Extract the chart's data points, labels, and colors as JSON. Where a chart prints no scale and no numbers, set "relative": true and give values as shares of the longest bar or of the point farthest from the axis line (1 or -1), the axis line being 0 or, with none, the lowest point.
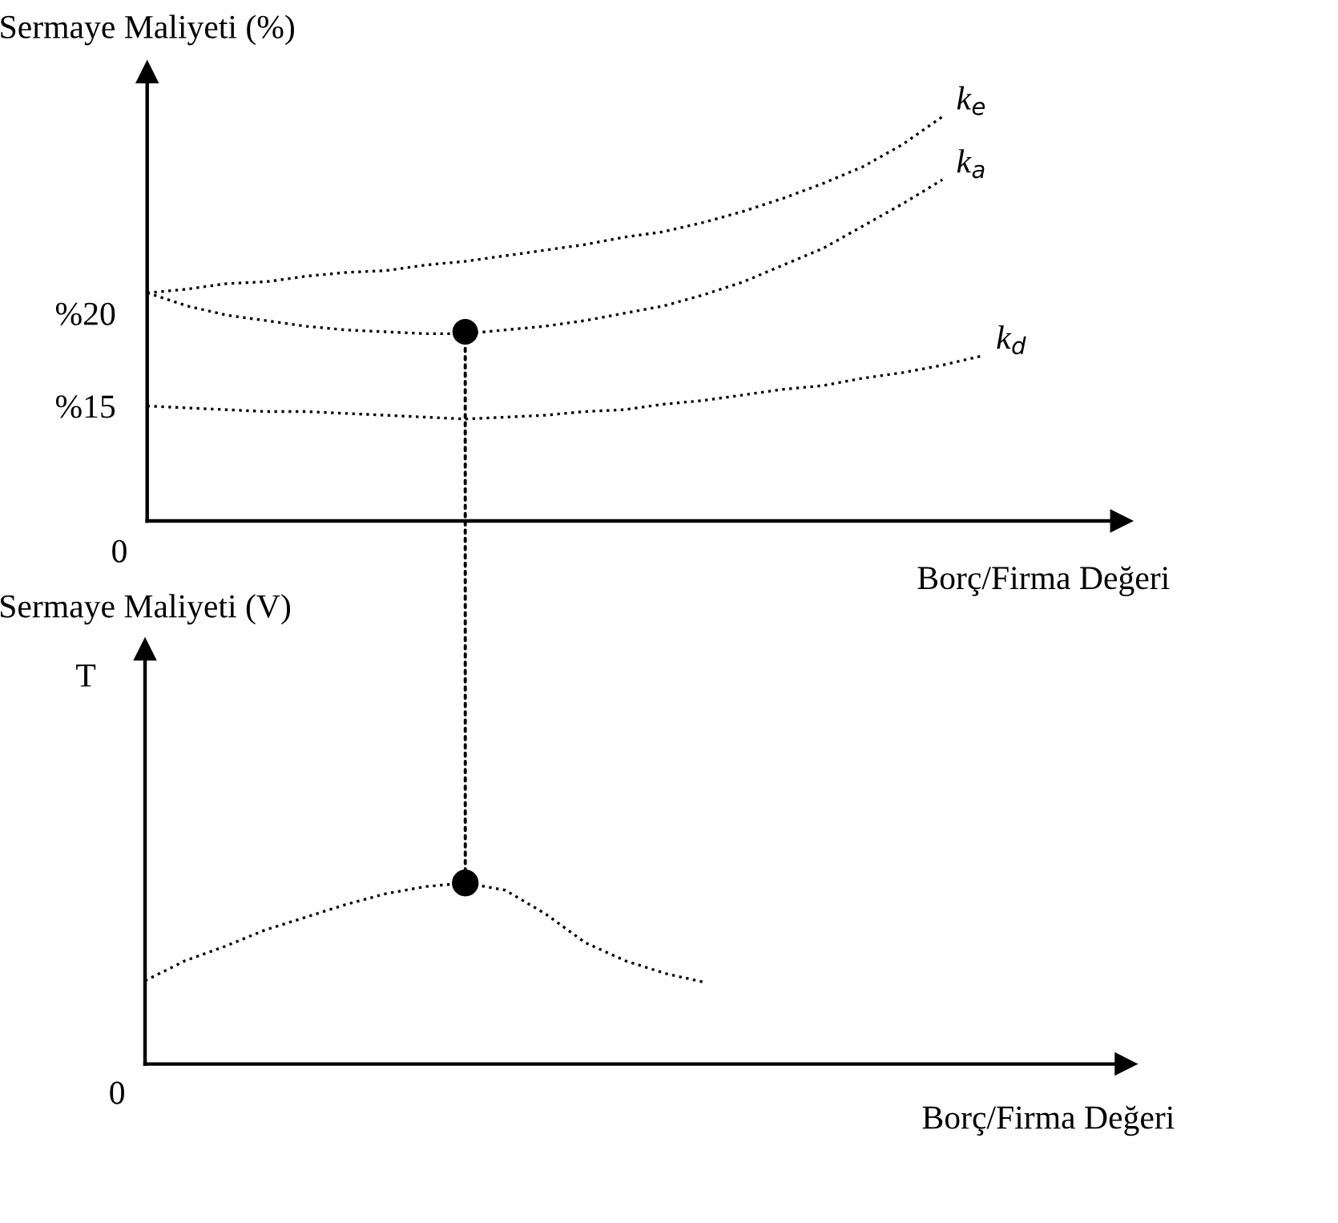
{
  "chart_data": [
    {
      "type": "line",
      "ylabel": "Sermaye Maliyeti (%)",
      "xlabel": "Borç/Firma Değeri",
      "categories": [
        null,
        null,
        null,
        null,
        null,
        null,
        null,
        null,
        null,
        null,
        null,
        null,
        null,
        null,
        null,
        null,
        null,
        null,
        null,
        null,
        null,
        null
      ],
      "ylim": [
        8.8,
        33
      ],
      "yticks": [
        {
          "value": 15,
          "label": "%15"
        },
        {
          "value": 20,
          "label": "%20"
        }
      ],
      "tick_labels": "y",
      "line_style": "dotted",
      "grid": false,
      "legend": false,
      "annotations": [
        "0"
      ],
      "series": [
        {
          "name": "k$_{e}$",
          "color": "#000000",
          "values": [
            21.1,
            21.3,
            21.6,
            21.7,
            22.0,
            22.2,
            22.3,
            22.6,
            22.8,
            23.1,
            23.4,
            23.7,
            24.1,
            24.4,
            24.9,
            25.5,
            26.2,
            27.0,
            27.9,
            29.1,
            30.6,
            null
          ]
        },
        {
          "name": "k$_{a}$",
          "color": "#000000",
          "values": [
            21.1,
            20.4,
            19.9,
            19.6,
            19.3,
            19.1,
            19.0,
            18.9,
            18.9,
            19.1,
            19.3,
            19.6,
            20.0,
            20.4,
            21.0,
            21.7,
            22.6,
            23.5,
            24.7,
            25.9,
            27.2,
            null
          ]
        },
        {
          "name": "k$_{d}$",
          "color": "#000000",
          "values": [
            15.0,
            14.9,
            14.8,
            14.7,
            14.7,
            14.6,
            14.5,
            14.4,
            14.3,
            14.4,
            14.5,
            14.7,
            14.8,
            15.1,
            15.3,
            15.6,
            15.9,
            16.1,
            16.5,
            16.8,
            17.2,
            17.7
          ]
        },
        {
          "type": "scatter",
          "marker": "circle",
          "color": "#000000",
          "values": [
            null,
            null,
            null,
            null,
            null,
            null,
            null,
            null,
            19.0,
            null,
            null,
            null,
            null,
            null,
            null,
            null,
            null,
            null,
            null,
            null,
            null,
            null
          ]
        }
      ]
    },
    {
      "type": "line",
      "ylabel": "Sermaye Maliyeti (V)",
      "xlabel": "Borç/Firma Değeri",
      "relative": true,
      "categories": [
        null,
        null,
        null,
        null,
        null,
        null,
        null,
        null,
        null,
        null,
        null,
        null,
        null,
        null,
        null
      ],
      "tick_labels": false,
      "line_style": "dotted",
      "grid": false,
      "legend": false,
      "annotations": [
        "0",
        "T"
      ],
      "series": [
        {
          "color": "#000000",
          "values": [
            0.46,
            0.57,
            0.65,
            0.74,
            0.81,
            0.88,
            0.94,
            0.98,
            1.0,
            0.96,
            0.83,
            0.67,
            0.57,
            0.5,
            0.45
          ]
        }
      ]
    }
  ]
}
